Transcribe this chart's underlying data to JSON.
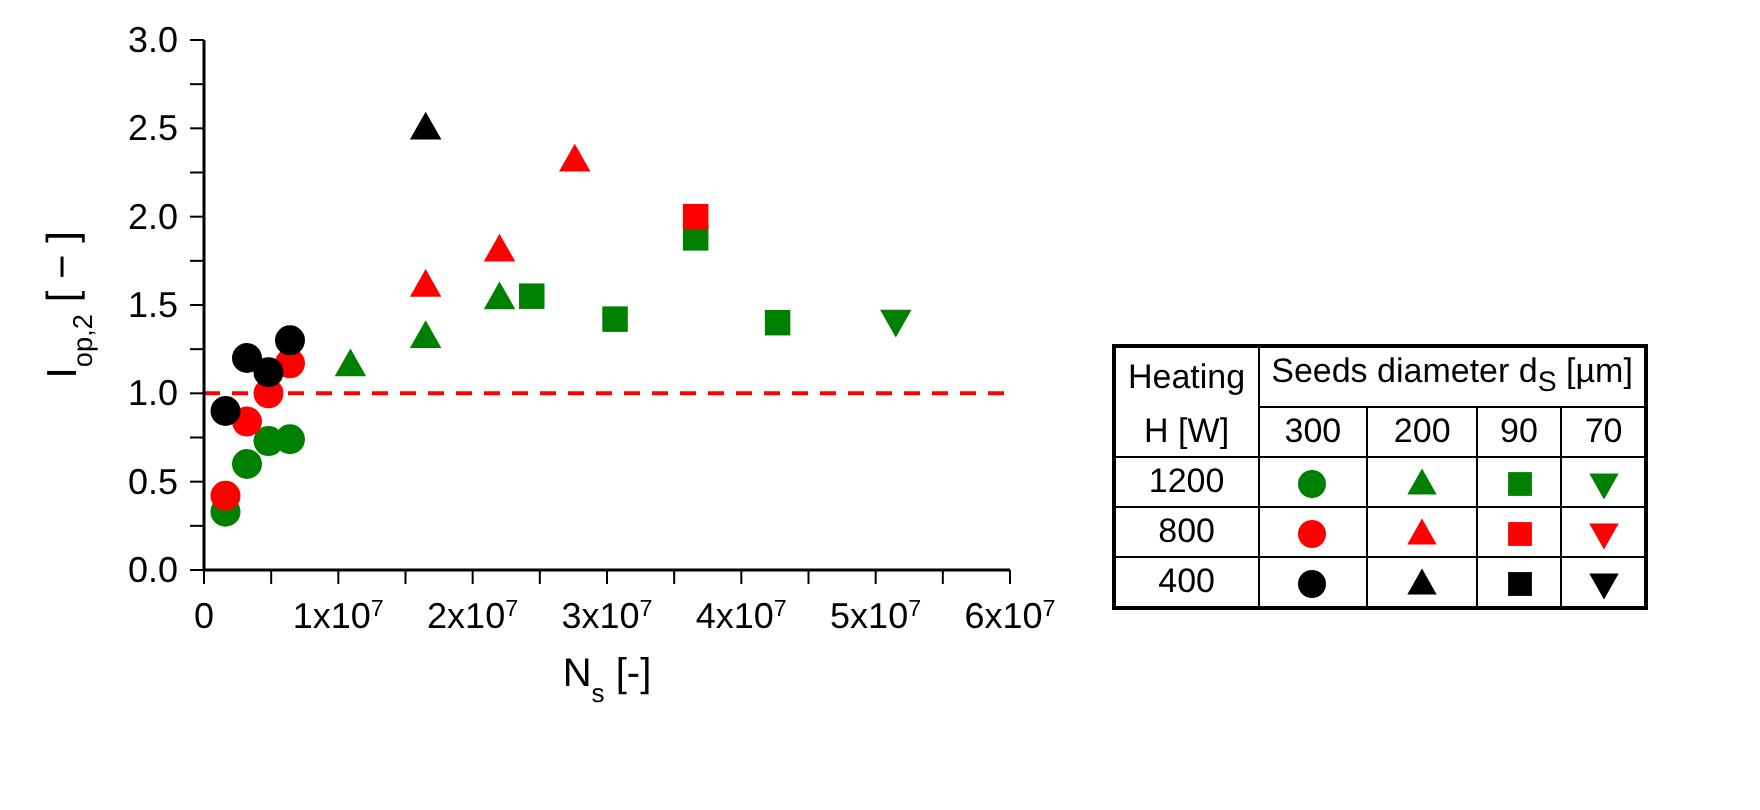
{
  "chart_data": {
    "type": "scatter",
    "xlabel": "N$_{s}$ [-]",
    "ylabel": "I$_{op,2}$ [ − ]",
    "xlim": [
      0,
      60000000
    ],
    "xticks": [
      0,
      {
        "value": 5000000,
        "label": null
      },
      {
        "value": 10000000,
        "label": "1x10$^{7}$"
      },
      {
        "value": 15000000,
        "label": null
      },
      {
        "value": 20000000,
        "label": "2x10$^{7}$"
      },
      {
        "value": 25000000,
        "label": null
      },
      {
        "value": 30000000,
        "label": "3x10$^{7}$"
      },
      {
        "value": 35000000,
        "label": null
      },
      {
        "value": 40000000,
        "label": "4x10$^{7}$"
      },
      {
        "value": 45000000,
        "label": null
      },
      {
        "value": 50000000,
        "label": "5x10$^{7}$"
      },
      {
        "value": 55000000,
        "label": null
      },
      {
        "value": 60000000,
        "label": "6x10$^{7}$"
      }
    ],
    "ylim": [
      0,
      3
    ],
    "yticks": [
      "0.0",
      {
        "value": 0.25,
        "label": null
      },
      {
        "value": 0.5,
        "label": "0.5"
      },
      {
        "value": 0.75,
        "label": null
      },
      {
        "value": 1,
        "label": "1.0"
      },
      {
        "value": 1.25,
        "label": null
      },
      {
        "value": 1.5,
        "label": "1.5"
      },
      {
        "value": 1.75,
        "label": null
      },
      {
        "value": 2,
        "label": "2.0"
      },
      {
        "value": 2.25,
        "label": null
      },
      {
        "value": 2.5,
        "label": "2.5"
      },
      {
        "value": 2.75,
        "label": null
      },
      {
        "value": 3,
        "label": "3.0"
      }
    ],
    "grid": false,
    "legend": false,
    "ref_lines": [
      {
        "axis": "y",
        "value": 1,
        "color": "#ff0000",
        "line_style": "dashed"
      }
    ],
    "annotations": [
      "Heating",
      "H [W]",
      "Seeds diameter d$_{S}$ [µm]",
      "300",
      "200",
      "90",
      "70",
      "1200",
      "800",
      "400"
    ],
    "series": [
      {
        "color": "#008000",
        "marker": "circle",
        "x": [
          1600000,
          3200000,
          4800000,
          6400000
        ],
        "values": [
          0.33,
          0.6,
          0.73,
          0.74
        ]
      },
      {
        "color": "#008000",
        "marker": "triangle",
        "x": [
          10900000,
          16500000,
          22000000
        ],
        "values": [
          1.16,
          1.32,
          1.54
        ]
      },
      {
        "color": "#008000",
        "marker": "square",
        "x": [
          24400000,
          30600000,
          36600000,
          42700000
        ],
        "values": [
          1.55,
          1.42,
          1.88,
          1.4
        ]
      },
      {
        "color": "#008000",
        "marker": "triangle-down",
        "x": [
          51500000
        ],
        "values": [
          1.41
        ]
      },
      {
        "color": "#ff0000",
        "marker": "circle",
        "x": [
          1600000,
          3200000,
          4800000,
          6400000
        ],
        "values": [
          0.42,
          0.84,
          1.0,
          1.17
        ]
      },
      {
        "color": "#ff0000",
        "marker": "triangle",
        "x": [
          16500000,
          22000000,
          27600000
        ],
        "values": [
          1.61,
          1.81,
          2.32
        ]
      },
      {
        "color": "#ff0000",
        "marker": "square",
        "x": [
          36600000
        ],
        "values": [
          2.0
        ]
      },
      {
        "color": "#ff0000",
        "marker": "triangle-down"
      },
      {
        "color": "#000000",
        "marker": "circle",
        "x": [
          1600000,
          3200000,
          4800000,
          6400000
        ],
        "values": [
          0.9,
          1.2,
          1.12,
          1.3
        ]
      },
      {
        "color": "#000000",
        "marker": "triangle",
        "x": [
          16500000
        ],
        "values": [
          2.5
        ]
      },
      {
        "color": "#000000",
        "marker": "square"
      },
      {
        "color": "#000000",
        "marker": "triangle-down"
      }
    ]
  }
}
